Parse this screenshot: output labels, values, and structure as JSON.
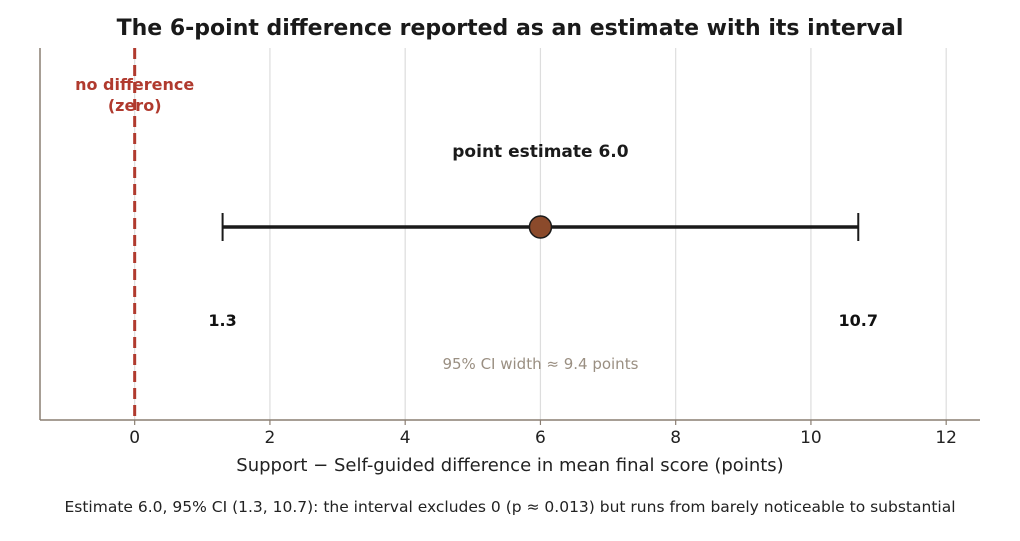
{
  "chart_data": {
    "type": "interval",
    "title": "The 6-point difference reported as an estimate with its interval",
    "xlabel": "Support − Self-guided difference in mean final score (points)",
    "xlim": [
      -1.4,
      12.5
    ],
    "x_ticks": [
      0,
      2,
      4,
      6,
      8,
      10,
      12
    ],
    "x_tick_labels": [
      "0",
      "2",
      "4",
      "6",
      "8",
      "10",
      "12"
    ],
    "grid": "vertical",
    "estimate": 6.0,
    "ci_lower": 1.3,
    "ci_upper": 10.7,
    "reference_line": {
      "x": 0,
      "label_line1": "no difference",
      "label_line2": "(zero)",
      "color": "#b03a2e"
    },
    "estimate_label": "point estimate 6.0",
    "lower_label": "1.3",
    "upper_label": "10.7",
    "width_note": "95% CI width ≈ 9.4 points",
    "colors": {
      "marker": "#8b4a2b",
      "interval": "#1a1a1a",
      "grid": "#dddddd",
      "axis": "#8a7e72",
      "note": "#9a8f82"
    }
  },
  "caption": "Estimate 6.0, 95% CI (1.3, 10.7): the interval excludes 0 (p ≈ 0.013) but runs from barely noticeable to substantial"
}
